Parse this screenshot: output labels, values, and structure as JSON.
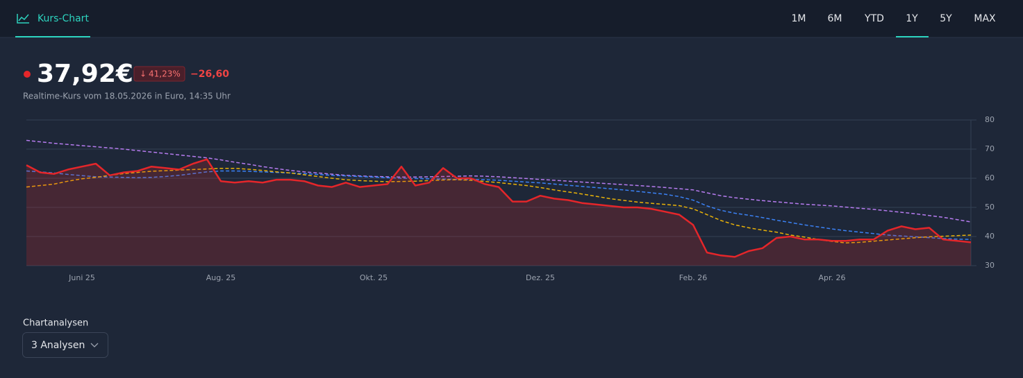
{
  "header": {
    "tab": "Kurs-Chart",
    "ranges": [
      "1M",
      "6M",
      "YTD",
      "1Y",
      "5Y",
      "MAX"
    ],
    "active_range_index": 3
  },
  "quote": {
    "price": "37,92€",
    "change_percent": "41,23%",
    "change": "−26,60",
    "note": "Realtime-Kurs vom 18.05.2026 in Euro, 14:35 Uhr"
  },
  "chart_data": {
    "type": "line",
    "categories": [
      null,
      null,
      null,
      null,
      "Juni 25",
      null,
      null,
      null,
      null,
      null,
      null,
      null,
      null,
      null,
      "Aug. 25",
      null,
      null,
      null,
      null,
      null,
      null,
      null,
      null,
      null,
      null,
      "Okt. 25",
      null,
      null,
      null,
      null,
      null,
      null,
      null,
      null,
      null,
      null,
      null,
      "Dez. 25",
      null,
      null,
      null,
      null,
      null,
      null,
      null,
      null,
      null,
      null,
      "Feb. 26",
      null,
      null,
      null,
      null,
      null,
      null,
      null,
      null,
      null,
      "Apr. 26",
      null,
      null,
      null,
      null,
      null,
      null,
      null,
      null,
      null,
      null
    ],
    "ylim": [
      30,
      80
    ],
    "yticks": [
      30,
      40,
      50,
      60,
      70,
      80
    ],
    "grid": true,
    "y_axis_side": "right",
    "series": [
      {
        "color": "#b77cf0",
        "style": "dashed",
        "values": [
          73,
          72.5,
          72,
          71.6,
          71.2,
          70.8,
          70.4,
          70,
          69.5,
          69,
          68.5,
          68,
          67.5,
          67,
          66.3,
          65.5,
          64.8,
          64,
          63.3,
          62.7,
          62.2,
          61.8,
          61.4,
          61,
          60.8,
          60.6,
          60.5,
          60.4,
          60.4,
          60.5,
          60.6,
          60.7,
          60.8,
          60.7,
          60.5,
          60.2,
          59.9,
          59.6,
          59.3,
          59,
          58.7,
          58.4,
          58.1,
          57.8,
          57.5,
          57.2,
          56.8,
          56.4,
          56,
          55,
          54,
          53.3,
          52.8,
          52.3,
          51.9,
          51.5,
          51.1,
          50.8,
          50.5,
          50.1,
          49.7,
          49.3,
          48.8,
          48.3,
          47.8,
          47.2,
          46.6,
          45.8,
          45
        ]
      },
      {
        "color": "#3b82f6",
        "style": "dashed",
        "values": [
          62.5,
          62.2,
          61.8,
          61.3,
          60.9,
          60.5,
          60.4,
          60.3,
          60.2,
          60.3,
          60.6,
          61,
          61.6,
          62.2,
          62.5,
          62.5,
          62.4,
          62.2,
          62,
          61.8,
          61.6,
          61.3,
          61,
          60.8,
          60.6,
          60.4,
          60.2,
          60,
          59.9,
          59.8,
          59.7,
          59.6,
          59.6,
          59.5,
          59.3,
          59,
          58.7,
          58.4,
          58,
          57.6,
          57.2,
          56.8,
          56.4,
          56,
          55.5,
          55,
          54.5,
          53.7,
          52.5,
          50.5,
          49,
          48,
          47.3,
          46.5,
          45.6,
          44.8,
          44,
          43.3,
          42.6,
          42,
          41.5,
          41,
          40.5,
          40.2,
          39.9,
          39.6,
          39.3,
          39.1,
          39
        ]
      },
      {
        "color": "#eab308",
        "style": "dashed",
        "values": [
          57,
          57.5,
          58,
          59,
          59.8,
          60.3,
          61,
          61.6,
          62,
          62.4,
          62.6,
          62.8,
          63,
          63.2,
          63.4,
          63.4,
          63.1,
          62.7,
          62.2,
          61.8,
          61.2,
          60.6,
          60,
          59.5,
          59.2,
          59,
          58.8,
          58.9,
          59,
          59.2,
          59.4,
          59.5,
          59.3,
          58.9,
          58.5,
          58,
          57.5,
          56.8,
          56,
          55.3,
          54.6,
          53.8,
          53,
          52.4,
          51.8,
          51.4,
          51,
          50.6,
          49.5,
          47.5,
          45.5,
          44,
          43,
          42.2,
          41.5,
          40.5,
          39.8,
          39,
          38.3,
          37.8,
          38,
          38.4,
          38.8,
          39.2,
          39.6,
          39.9,
          40.1,
          40.3,
          40.5
        ]
      },
      {
        "color": "#e5262a",
        "style": "solid",
        "area": true,
        "values": [
          64.5,
          62,
          61.5,
          63,
          64,
          65,
          61,
          62,
          62.5,
          64,
          63.5,
          63,
          65,
          66.5,
          59,
          58.5,
          59,
          58.5,
          59.5,
          59.5,
          59,
          57.5,
          57,
          58.5,
          57,
          57.5,
          58,
          64,
          57.5,
          58.5,
          63.5,
          60,
          60,
          58,
          57,
          52,
          52,
          54,
          53,
          52.5,
          51.5,
          51,
          50.5,
          50,
          50,
          49.5,
          48.5,
          47.5,
          44,
          34.5,
          33.5,
          33,
          35,
          36,
          39.5,
          40,
          39,
          39,
          38.5,
          38.5,
          39,
          39,
          42,
          43.5,
          42.5,
          43,
          39,
          38.5,
          38
        ]
      }
    ]
  },
  "analyses": {
    "label": "Chartanalysen",
    "dropdown": "3 Analysen"
  }
}
